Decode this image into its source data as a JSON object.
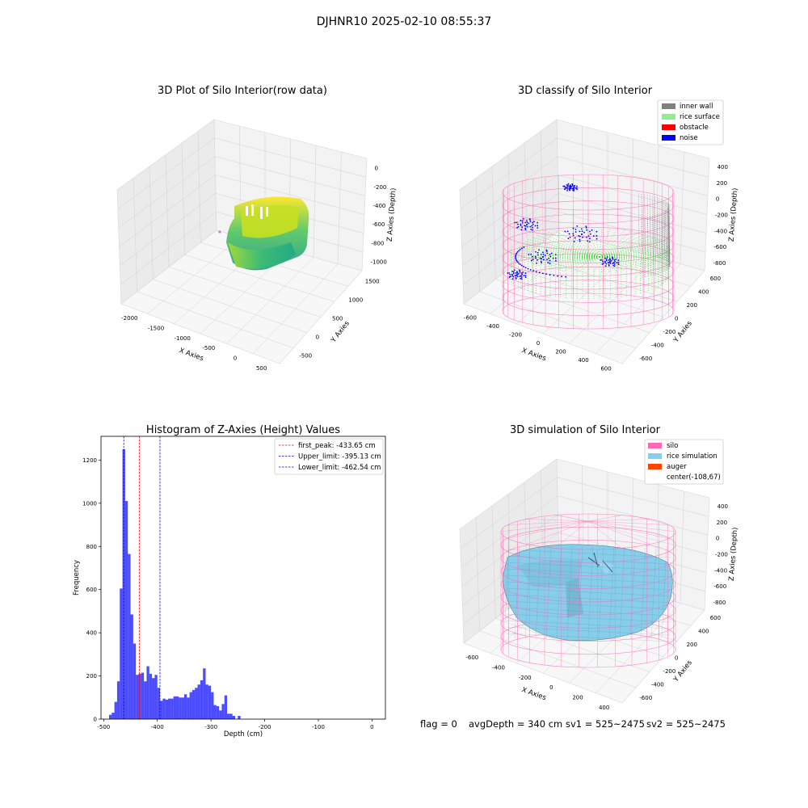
{
  "figure": {
    "suptitle": "DJHNR10 2025-02-10 08:55:37",
    "status": {
      "flag": "flag = 0",
      "avg_depth": "avgDepth = 340 cm",
      "sv1": "sv1 = 525~2475",
      "sv2": "sv2 = 525~2475"
    }
  },
  "panels": {
    "raw": {
      "title": "3D Plot of Silo Interior(row data)",
      "xlabel": "X Axies",
      "ylabel": "Y Axies",
      "zlabel": "Z Axies (Depth)",
      "xticks": [
        "-2000",
        "-1500",
        "-1000",
        "-500",
        "0",
        "500"
      ],
      "yticks": [
        "-500",
        "0",
        "500",
        "1000",
        "1500"
      ],
      "zticks": [
        "0",
        "-200",
        "-400",
        "-600",
        "-800",
        "-1000"
      ],
      "colormap": [
        "#440154",
        "#21918c",
        "#5ec962",
        "#fde725"
      ]
    },
    "classify": {
      "title": "3D classify of Silo Interior",
      "xlabel": "X Axies",
      "ylabel": "Y Axies",
      "zlabel": "Z Axies (Depth)",
      "xticks": [
        "-600",
        "-400",
        "-200",
        "0",
        "200",
        "400",
        "600"
      ],
      "yticks": [
        "-600",
        "-400",
        "-200",
        "0",
        "200",
        "400",
        "600"
      ],
      "zticks": [
        "400",
        "200",
        "0",
        "-200",
        "-400",
        "-600",
        "-800"
      ],
      "legend": [
        {
          "label": "inner wall",
          "color": "#808080"
        },
        {
          "label": "rice surface",
          "color": "#90ee90"
        },
        {
          "label": "obstacle",
          "color": "#ff0000"
        },
        {
          "label": "noise",
          "color": "#0000ff"
        }
      ],
      "colors": {
        "silo": "#ff69b4",
        "surface": "#00e000",
        "noise": "#0000ff",
        "wall": "#808080"
      }
    },
    "simulation": {
      "title": "3D simulation of Silo Interior",
      "xlabel": "X Axies",
      "ylabel": "Y Axies",
      "zlabel": "Z Axies (Depth)",
      "xticks": [
        "-600",
        "-400",
        "-200",
        "0",
        "200",
        "400"
      ],
      "yticks": [
        "-600",
        "-400",
        "-200",
        "0",
        "200",
        "400",
        "600"
      ],
      "zticks": [
        "400",
        "200",
        "0",
        "-200",
        "-400",
        "-600",
        "-800"
      ],
      "legend": [
        {
          "label": "silo",
          "color": "#ff69b4"
        },
        {
          "label": "rice simulation",
          "color": "#87ceeb"
        },
        {
          "label": "auger",
          "color": "#ff4500"
        },
        {
          "label": "center(-108,67)",
          "color": ""
        }
      ]
    }
  },
  "chart_data": [
    {
      "type": "bar",
      "title": "Histogram of Z-Axies (Height) Values",
      "xlabel": "Depth (cm)",
      "ylabel": "Frequency",
      "bar_color": "#0000ff",
      "bin_width": 5,
      "bins": [
        {
          "x": -490,
          "y": 20
        },
        {
          "x": -485,
          "y": 30
        },
        {
          "x": -480,
          "y": 80
        },
        {
          "x": -475,
          "y": 175
        },
        {
          "x": -470,
          "y": 605
        },
        {
          "x": -465,
          "y": 1250
        },
        {
          "x": -460,
          "y": 1010
        },
        {
          "x": -455,
          "y": 765
        },
        {
          "x": -450,
          "y": 485
        },
        {
          "x": -445,
          "y": 350
        },
        {
          "x": -440,
          "y": 205
        },
        {
          "x": -435,
          "y": 210
        },
        {
          "x": -430,
          "y": 215
        },
        {
          "x": -425,
          "y": 175
        },
        {
          "x": -420,
          "y": 245
        },
        {
          "x": -415,
          "y": 210
        },
        {
          "x": -410,
          "y": 190
        },
        {
          "x": -405,
          "y": 205
        },
        {
          "x": -400,
          "y": 145
        },
        {
          "x": -395,
          "y": 85
        },
        {
          "x": -390,
          "y": 95
        },
        {
          "x": -385,
          "y": 90
        },
        {
          "x": -380,
          "y": 95
        },
        {
          "x": -375,
          "y": 95
        },
        {
          "x": -370,
          "y": 105
        },
        {
          "x": -365,
          "y": 105
        },
        {
          "x": -360,
          "y": 100
        },
        {
          "x": -355,
          "y": 100
        },
        {
          "x": -350,
          "y": 115
        },
        {
          "x": -345,
          "y": 100
        },
        {
          "x": -340,
          "y": 125
        },
        {
          "x": -335,
          "y": 135
        },
        {
          "x": -330,
          "y": 145
        },
        {
          "x": -325,
          "y": 160
        },
        {
          "x": -320,
          "y": 180
        },
        {
          "x": -315,
          "y": 235
        },
        {
          "x": -310,
          "y": 160
        },
        {
          "x": -305,
          "y": 155
        },
        {
          "x": -300,
          "y": 125
        },
        {
          "x": -295,
          "y": 65
        },
        {
          "x": -290,
          "y": 60
        },
        {
          "x": -285,
          "y": 40
        },
        {
          "x": -280,
          "y": 70
        },
        {
          "x": -275,
          "y": 110
        },
        {
          "x": -270,
          "y": 25
        },
        {
          "x": -265,
          "y": 25
        },
        {
          "x": -260,
          "y": 15
        },
        {
          "x": -255,
          "y": 0
        },
        {
          "x": -250,
          "y": 15
        }
      ],
      "xticks": [
        -500,
        -400,
        -300,
        -200,
        -100,
        0
      ],
      "yticks": [
        0,
        200,
        400,
        600,
        800,
        1000,
        1200
      ],
      "xlim": [
        -505,
        25
      ],
      "ylim": [
        0,
        1310
      ],
      "vlines": [
        {
          "label": "first_peak: -433.65 cm",
          "x": -433.65,
          "color": "#ff0000"
        },
        {
          "label": "Upper_limit: -395.13 cm",
          "x": -395.13,
          "color": "#0000ff"
        },
        {
          "label": "Lower_limit: -462.54 cm",
          "x": -462.54,
          "color": "#0000ff"
        }
      ],
      "legend_position": "upper right",
      "grid": false
    }
  ]
}
